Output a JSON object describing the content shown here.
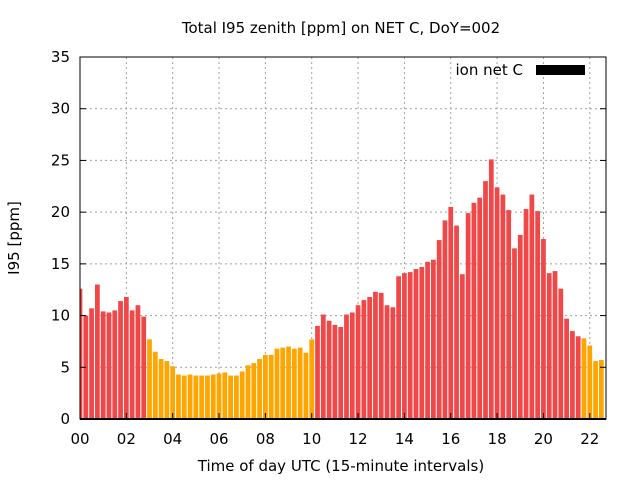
{
  "chart_data": {
    "type": "bar",
    "title": "Total I95 zenith [ppm] on NET C, DoY=002",
    "xlabel": "Time of day UTC (15-minute intervals)",
    "ylabel": "I95 [ppm]",
    "xlim": [
      0,
      22.7
    ],
    "ylim": [
      0,
      35
    ],
    "grid": true,
    "x_ticks": [
      0,
      2,
      4,
      6,
      8,
      10,
      12,
      14,
      16,
      18,
      20,
      22
    ],
    "x_tick_labels": [
      "00",
      "02",
      "04",
      "06",
      "08",
      "10",
      "12",
      "14",
      "16",
      "18",
      "20",
      "22"
    ],
    "y_ticks": [
      0,
      5,
      10,
      15,
      20,
      25,
      30,
      35
    ],
    "y_tick_labels": [
      "0",
      "5",
      "10",
      "15",
      "20",
      "25",
      "30",
      "35"
    ],
    "legend": {
      "label": "ion net C",
      "placement": "top-right",
      "color": "#000000"
    },
    "bar_step_hours": 0.25,
    "color_threshold": 8,
    "color_high": "#f04848",
    "color_low": "#ffa500",
    "values": [
      12.6,
      10.0,
      10.7,
      13.0,
      10.4,
      10.3,
      10.5,
      11.4,
      11.8,
      10.5,
      11.0,
      9.9,
      7.7,
      6.5,
      5.8,
      5.6,
      5.1,
      4.3,
      4.2,
      4.3,
      4.2,
      4.2,
      4.2,
      4.3,
      4.4,
      4.5,
      4.2,
      4.2,
      4.6,
      5.2,
      5.4,
      5.8,
      6.2,
      6.2,
      6.8,
      6.9,
      7.0,
      6.8,
      6.9,
      6.4,
      7.7,
      9.0,
      10.1,
      9.5,
      9.1,
      8.9,
      10.1,
      10.3,
      11.0,
      11.5,
      11.8,
      12.3,
      12.2,
      11.0,
      10.8,
      13.8,
      14.1,
      14.2,
      14.5,
      14.7,
      15.2,
      15.4,
      17.3,
      19.2,
      20.5,
      18.7,
      14.0,
      19.9,
      20.9,
      21.4,
      23.0,
      25.1,
      22.4,
      21.7,
      20.2,
      16.5,
      17.8,
      20.3,
      21.7,
      20.1,
      17.4,
      14.1,
      14.3,
      12.6,
      9.7,
      8.5,
      8.0,
      7.8,
      7.1,
      5.6,
      5.7
    ]
  }
}
